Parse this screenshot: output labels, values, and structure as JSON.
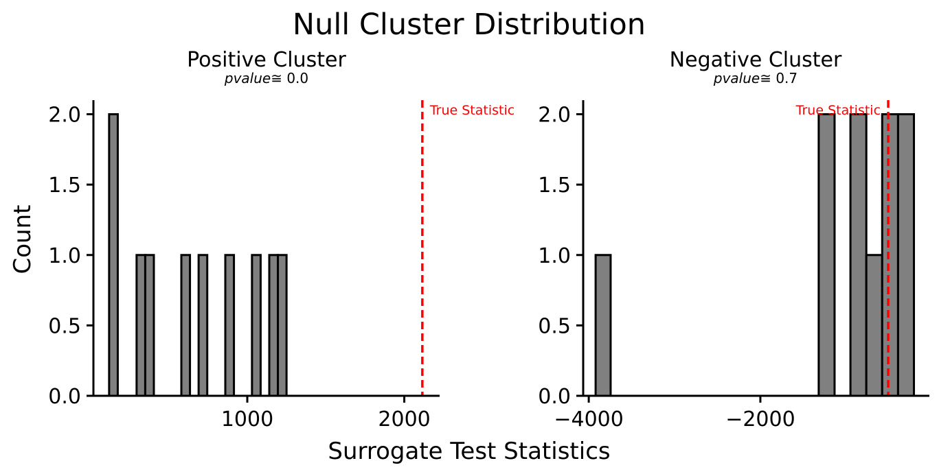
{
  "figure": {
    "title": "Null Cluster Distribution",
    "xlabel": "Surrogate Test Statistics",
    "ylabel": "Count"
  },
  "chart_data": [
    {
      "type": "bar",
      "title": "Positive Cluster",
      "pvalue_label": "pvalue",
      "pvalue_text": "≅ 0.0",
      "xlabel": "Surrogate Test Statistics",
      "ylabel": "Count",
      "xlim": [
        20,
        2225
      ],
      "ylim": [
        0,
        2.1
      ],
      "xticks": [
        1000,
        2000
      ],
      "xtick_labels": [
        "1000",
        "2000"
      ],
      "yticks": [
        0.0,
        0.5,
        1.0,
        1.5,
        2.0
      ],
      "ytick_labels": [
        "0.0",
        "0.5",
        "1.0",
        "1.5",
        "2.0"
      ],
      "bins": [
        {
          "x0": 120,
          "x1": 175,
          "count": 2
        },
        {
          "x0": 295,
          "x1": 350,
          "count": 1
        },
        {
          "x0": 350,
          "x1": 405,
          "count": 1
        },
        {
          "x0": 580,
          "x1": 635,
          "count": 1
        },
        {
          "x0": 690,
          "x1": 745,
          "count": 1
        },
        {
          "x0": 860,
          "x1": 915,
          "count": 1
        },
        {
          "x0": 1030,
          "x1": 1085,
          "count": 1
        },
        {
          "x0": 1140,
          "x1": 1195,
          "count": 1
        },
        {
          "x0": 1195,
          "x1": 1250,
          "count": 1
        }
      ],
      "true_statistic": {
        "value": 2115,
        "label": "True Statistic",
        "label_side": "right"
      },
      "colors": {
        "bar": "#808080",
        "edge": "#000000",
        "line": "#ff0000"
      }
    },
    {
      "type": "bar",
      "title": "Negative Cluster",
      "pvalue_label": "pvalue",
      "pvalue_text": "≅ 0.7",
      "xlabel": "Surrogate Test Statistics",
      "ylabel": "",
      "xlim": [
        -4065,
        -30
      ],
      "ylim": [
        0,
        2.1
      ],
      "xticks": [
        -4000,
        -2000
      ],
      "xtick_labels": [
        "−4000",
        "−2000"
      ],
      "yticks": [
        0.0,
        0.5,
        1.0,
        1.5,
        2.0
      ],
      "ytick_labels": [
        "0.0",
        "0.5",
        "1.0",
        "1.5",
        "2.0"
      ],
      "bins": [
        {
          "x0": -3920,
          "x1": -3745,
          "count": 1
        },
        {
          "x0": -1320,
          "x1": -1135,
          "count": 2
        },
        {
          "x0": -950,
          "x1": -765,
          "count": 2
        },
        {
          "x0": -765,
          "x1": -580,
          "count": 1
        },
        {
          "x0": -580,
          "x1": -395,
          "count": 2
        },
        {
          "x0": -395,
          "x1": -210,
          "count": 2
        }
      ],
      "true_statistic": {
        "value": -510,
        "label": "True Statistic",
        "label_side": "left"
      },
      "colors": {
        "bar": "#808080",
        "edge": "#000000",
        "line": "#ff0000"
      }
    }
  ]
}
